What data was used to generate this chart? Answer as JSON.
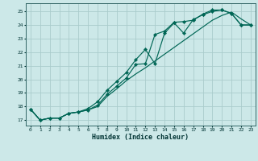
{
  "xlabel": "Humidex (Indice chaleur)",
  "xlim": [
    -0.5,
    23.5
  ],
  "ylim": [
    16.6,
    25.6
  ],
  "xticks": [
    0,
    1,
    2,
    3,
    4,
    5,
    6,
    7,
    8,
    9,
    10,
    11,
    12,
    13,
    14,
    15,
    16,
    17,
    18,
    19,
    20,
    21,
    22,
    23
  ],
  "yticks": [
    17,
    18,
    19,
    20,
    21,
    22,
    23,
    24,
    25
  ],
  "bg_color": "#cce8e8",
  "grid_color": "#aacccc",
  "line_color": "#006655",
  "line1_x": [
    0,
    1,
    2,
    3,
    4,
    5,
    6,
    7,
    8,
    9,
    10,
    11,
    12,
    13,
    14,
    15,
    16,
    17,
    18,
    19,
    20,
    21,
    22,
    23
  ],
  "line1_y": [
    17.8,
    17.0,
    17.15,
    17.15,
    17.5,
    17.6,
    17.75,
    18.1,
    18.9,
    19.5,
    20.1,
    21.1,
    21.15,
    23.3,
    23.55,
    24.2,
    24.25,
    24.35,
    24.8,
    25.1,
    25.1,
    24.85,
    24.0,
    24.0
  ],
  "line2_x": [
    0,
    1,
    2,
    3,
    4,
    5,
    6,
    7,
    8,
    9,
    10,
    11,
    12,
    13,
    14,
    15,
    16,
    17,
    18,
    19,
    20,
    21,
    22,
    23
  ],
  "line2_y": [
    17.8,
    17.0,
    17.15,
    17.15,
    17.5,
    17.6,
    17.85,
    18.35,
    19.2,
    19.85,
    20.5,
    21.45,
    22.2,
    21.15,
    23.4,
    24.15,
    23.4,
    24.4,
    24.75,
    25.0,
    25.1,
    24.85,
    24.0,
    24.0
  ],
  "line3_x": [
    0,
    1,
    2,
    3,
    4,
    5,
    6,
    7,
    8,
    9,
    10,
    11,
    12,
    13,
    14,
    15,
    16,
    17,
    18,
    19,
    20,
    21,
    22,
    23
  ],
  "line3_y": [
    17.8,
    17.0,
    17.15,
    17.15,
    17.5,
    17.6,
    17.75,
    18.0,
    18.75,
    19.3,
    19.9,
    20.4,
    20.85,
    21.35,
    21.85,
    22.35,
    22.85,
    23.35,
    23.85,
    24.35,
    24.7,
    24.95,
    24.45,
    24.0
  ]
}
